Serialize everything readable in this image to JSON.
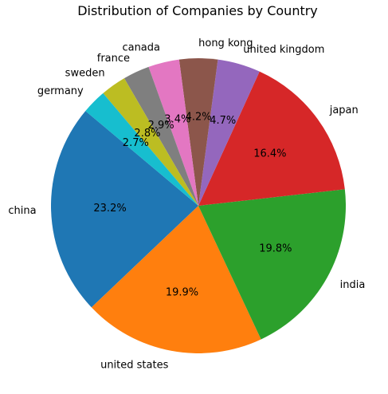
{
  "chart_data": {
    "type": "pie",
    "title": "Distribution of Companies by Country",
    "slices": [
      {
        "label": "china",
        "value": 23.2,
        "pct_label": "23.2%",
        "color": "#1f77b4"
      },
      {
        "label": "united states",
        "value": 19.9,
        "pct_label": "19.9%",
        "color": "#ff7f0e"
      },
      {
        "label": "india",
        "value": 19.8,
        "pct_label": "19.8%",
        "color": "#2ca02c"
      },
      {
        "label": "japan",
        "value": 16.4,
        "pct_label": "16.4%",
        "color": "#d62728"
      },
      {
        "label": "united kingdom",
        "value": 4.7,
        "pct_label": "4.7%",
        "color": "#9467bd"
      },
      {
        "label": "hong kong",
        "value": 4.2,
        "pct_label": "4.2%",
        "color": "#8c564b"
      },
      {
        "label": "canada",
        "value": 3.4,
        "pct_label": "3.4%",
        "color": "#e377c2"
      },
      {
        "label": "france",
        "value": 2.9,
        "pct_label": "2.9%",
        "color": "#7f7f7f"
      },
      {
        "label": "sweden",
        "value": 2.8,
        "pct_label": "2.8%",
        "color": "#bcbd22"
      },
      {
        "label": "germany",
        "value": 2.7,
        "pct_label": "2.7%",
        "color": "#17becf"
      }
    ],
    "start_angle_deg": 140,
    "direction": "counterclockwise",
    "legend": "none"
  }
}
